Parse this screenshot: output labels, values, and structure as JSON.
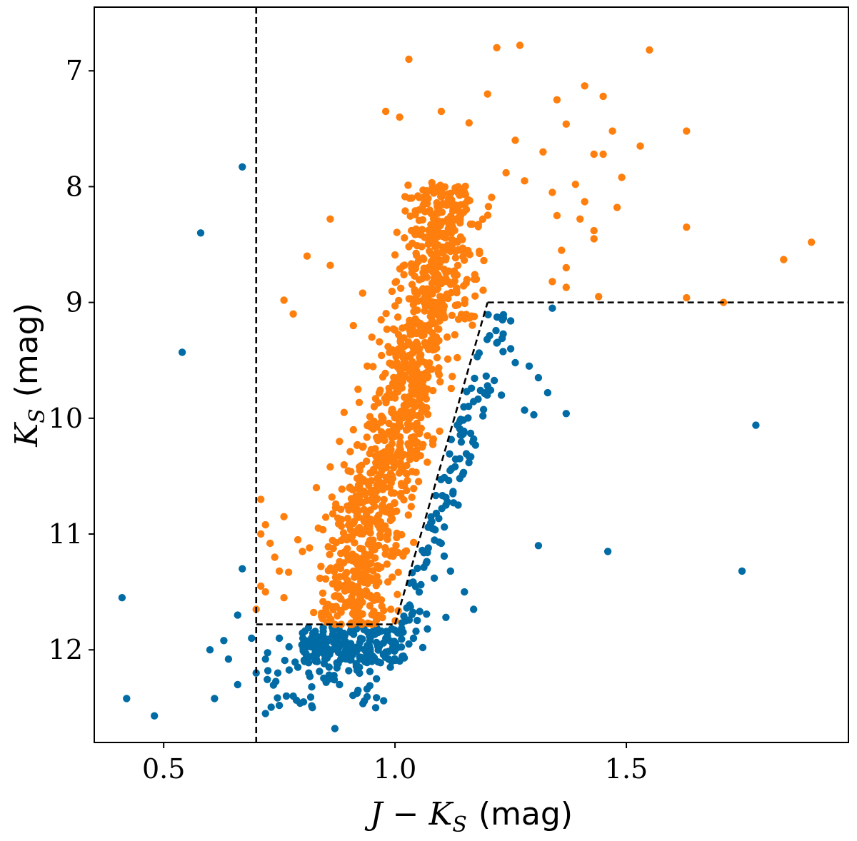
{
  "chart_data": {
    "type": "scatter",
    "title": "",
    "xlabel": {
      "prefix": "J − K",
      "sub": "S",
      "unit": "(mag)"
    },
    "ylabel": {
      "prefix": "K",
      "sub": "S",
      "unit": "(mag)"
    },
    "xlim": [
      0.35,
      1.98
    ],
    "ylim": [
      12.8,
      6.45
    ],
    "y_inverted": true,
    "grid": false,
    "xticks": [
      0.5,
      1.0,
      1.5
    ],
    "xtick_labels": [
      "0.5",
      "1.0",
      "1.5"
    ],
    "yticks": [
      7,
      8,
      9,
      10,
      11,
      12
    ],
    "ytick_labels": [
      "7",
      "8",
      "9",
      "10",
      "11",
      "12"
    ],
    "colors": {
      "selected": "#ff7f0e",
      "rejected": "#006ba4",
      "boundary": "#000000"
    },
    "series": [
      {
        "key": "selected",
        "color": "#ff7f0e",
        "points": [
          [
            1.03,
            6.9
          ],
          [
            1.22,
            6.8
          ],
          [
            1.27,
            6.78
          ],
          [
            1.55,
            6.82
          ],
          [
            1.2,
            7.2
          ],
          [
            1.35,
            7.25
          ],
          [
            1.41,
            7.13
          ],
          [
            1.45,
            7.22
          ],
          [
            0.98,
            7.35
          ],
          [
            1.01,
            7.4
          ],
          [
            1.1,
            7.35
          ],
          [
            1.16,
            7.45
          ],
          [
            1.26,
            7.6
          ],
          [
            1.32,
            7.7
          ],
          [
            1.37,
            7.46
          ],
          [
            1.47,
            7.52
          ],
          [
            1.53,
            7.65
          ],
          [
            1.63,
            7.52
          ],
          [
            1.43,
            7.72
          ],
          [
            1.45,
            7.72
          ],
          [
            1.49,
            7.92
          ],
          [
            1.39,
            7.98
          ],
          [
            1.24,
            7.88
          ],
          [
            1.28,
            7.95
          ],
          [
            1.34,
            8.05
          ],
          [
            1.41,
            8.13
          ],
          [
            1.48,
            8.18
          ],
          [
            1.35,
            8.25
          ],
          [
            1.4,
            8.28
          ],
          [
            1.43,
            8.38
          ],
          [
            1.63,
            8.35
          ],
          [
            1.43,
            8.45
          ],
          [
            1.36,
            8.55
          ],
          [
            1.84,
            8.63
          ],
          [
            1.9,
            8.48
          ],
          [
            1.37,
            8.7
          ],
          [
            1.34,
            8.82
          ],
          [
            1.37,
            8.87
          ],
          [
            1.44,
            8.95
          ],
          [
            1.63,
            8.96
          ],
          [
            1.71,
            9.0
          ],
          [
            0.86,
            8.28
          ],
          [
            0.86,
            8.68
          ],
          [
            0.81,
            8.6
          ],
          [
            0.93,
            8.92
          ],
          [
            0.76,
            8.98
          ],
          [
            0.78,
            9.1
          ],
          [
            0.91,
            9.2
          ],
          [
            0.71,
            10.7
          ],
          [
            0.72,
            10.92
          ],
          [
            0.71,
            11.0
          ],
          [
            0.73,
            11.08
          ],
          [
            0.74,
            11.2
          ],
          [
            0.75,
            11.32
          ],
          [
            0.71,
            11.45
          ],
          [
            0.72,
            11.5
          ],
          [
            0.7,
            11.65
          ],
          [
            0.76,
            11.55
          ],
          [
            0.77,
            11.33
          ],
          [
            0.76,
            10.85
          ],
          [
            0.79,
            11.05
          ],
          [
            0.83,
            10.6
          ],
          [
            0.8,
            11.15
          ],
          [
            0.84,
            11.28
          ],
          [
            0.86,
            10.42
          ],
          [
            0.88,
            10.2
          ],
          [
            0.89,
            9.95
          ],
          [
            0.91,
            10.1
          ],
          [
            0.92,
            9.75
          ],
          [
            0.94,
            9.55
          ],
          [
            0.95,
            9.3
          ],
          [
            0.97,
            9.15
          ]
        ],
        "band": {
          "rows": 92,
          "points_per_row": 12,
          "top_k": 8.0,
          "bottom_k": 11.78,
          "left_edge": [
            [
              8.0,
              0.99
            ],
            [
              9.0,
              0.97
            ],
            [
              10.0,
              0.9
            ],
            [
              11.0,
              0.82
            ],
            [
              11.78,
              0.8
            ]
          ],
          "right_edge": [
            [
              8.0,
              1.22
            ],
            [
              9.0,
              1.2
            ],
            [
              10.0,
              1.12
            ],
            [
              11.0,
              1.05
            ],
            [
              11.78,
              1.01
            ]
          ]
        }
      },
      {
        "key": "rejected",
        "color": "#006ba4",
        "points": [
          [
            0.67,
            7.83
          ],
          [
            0.58,
            8.4
          ],
          [
            0.54,
            9.43
          ],
          [
            0.67,
            11.3
          ],
          [
            0.41,
            11.55
          ],
          [
            0.42,
            12.42
          ],
          [
            0.48,
            12.57
          ],
          [
            0.87,
            12.68
          ],
          [
            1.78,
            10.06
          ],
          [
            1.31,
            11.1
          ],
          [
            1.46,
            11.15
          ],
          [
            1.75,
            11.32
          ],
          [
            1.37,
            9.96
          ],
          [
            1.34,
            9.05
          ],
          [
            1.22,
            9.35
          ],
          [
            1.25,
            9.4
          ],
          [
            1.26,
            9.52
          ],
          [
            1.29,
            9.55
          ],
          [
            1.31,
            9.65
          ],
          [
            1.33,
            9.78
          ],
          [
            1.3,
            9.97
          ],
          [
            1.28,
            9.93
          ],
          [
            1.23,
            9.8
          ],
          [
            1.2,
            9.72
          ],
          [
            1.19,
            9.98
          ],
          [
            1.17,
            10.18
          ],
          [
            1.16,
            10.33
          ],
          [
            1.14,
            10.52
          ],
          [
            1.11,
            10.75
          ],
          [
            1.08,
            10.95
          ],
          [
            1.07,
            11.16
          ],
          [
            1.12,
            11.32
          ],
          [
            1.15,
            11.5
          ],
          [
            1.17,
            11.65
          ],
          [
            1.11,
            11.72
          ],
          [
            1.04,
            11.9
          ],
          [
            1.06,
            11.98
          ],
          [
            1.02,
            12.07
          ],
          [
            0.98,
            12.02
          ],
          [
            0.95,
            12.1
          ],
          [
            0.9,
            12.18
          ],
          [
            0.86,
            12.25
          ],
          [
            0.82,
            12.32
          ],
          [
            0.78,
            12.4
          ],
          [
            0.75,
            12.48
          ],
          [
            0.72,
            12.55
          ],
          [
            0.7,
            12.2
          ],
          [
            0.66,
            12.3
          ],
          [
            0.64,
            12.08
          ],
          [
            0.61,
            12.42
          ],
          [
            0.6,
            12.0
          ],
          [
            0.63,
            11.92
          ],
          [
            0.66,
            11.7
          ],
          [
            0.69,
            11.9
          ],
          [
            0.72,
            12.08
          ],
          [
            0.75,
            11.9
          ],
          [
            0.79,
            12.15
          ],
          [
            0.83,
            12.05
          ],
          [
            0.88,
            12.3
          ],
          [
            0.92,
            12.35
          ],
          [
            0.96,
            12.25
          ],
          [
            0.99,
            12.15
          ],
          [
            1.03,
            11.95
          ],
          [
            1.07,
            11.82
          ]
        ],
        "clusters": [
          {
            "n": 170,
            "x": [
              0.8,
              1.02
            ],
            "k": [
              11.8,
              12.12
            ]
          },
          {
            "n": 60,
            "x": [
              0.72,
              0.98
            ],
            "k": [
              11.95,
              12.5
            ]
          },
          {
            "n": 110,
            "x": [
              1.0,
              1.2
            ],
            "k": [
              9.1,
              11.85
            ],
            "tilt": true
          }
        ]
      }
    ],
    "boundary": {
      "style": "dashed",
      "segments": [
        [
          [
            0.7,
            6.45
          ],
          [
            0.7,
            12.8
          ]
        ],
        [
          [
            0.7,
            11.78
          ],
          [
            1.0,
            11.78
          ]
        ],
        [
          [
            1.0,
            11.78
          ],
          [
            1.2,
            9.0
          ]
        ],
        [
          [
            1.2,
            9.0
          ],
          [
            1.98,
            9.0
          ]
        ]
      ]
    }
  }
}
